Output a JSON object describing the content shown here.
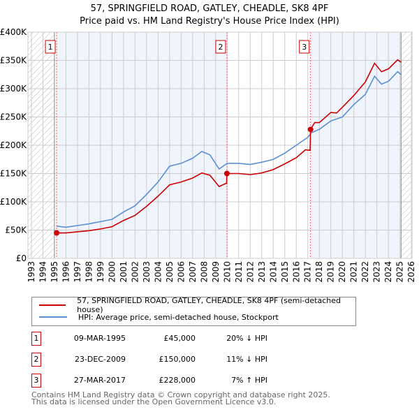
{
  "chart_data": {
    "type": "line",
    "title": "57, SPRINGFIELD ROAD, GATLEY, CHEADLE, SK8 4PF",
    "subtitle": "Price paid vs. HM Land Registry's House Price Index (HPI)",
    "xlim": [
      1993,
      2026
    ],
    "ylim": [
      0,
      400000
    ],
    "x_ticks": [
      "1993",
      "1994",
      "1995",
      "1996",
      "1997",
      "1998",
      "1999",
      "2000",
      "2001",
      "2002",
      "2003",
      "2004",
      "2005",
      "2006",
      "2007",
      "2008",
      "2009",
      "2010",
      "2011",
      "2012",
      "2013",
      "2014",
      "2015",
      "2016",
      "2017",
      "2018",
      "2019",
      "2020",
      "2021",
      "2022",
      "2023",
      "2024",
      "2025",
      "2026"
    ],
    "y_ticks": [
      {
        "v": 0,
        "label": "£0"
      },
      {
        "v": 50000,
        "label": "£50K"
      },
      {
        "v": 100000,
        "label": "£100K"
      },
      {
        "v": 150000,
        "label": "£150K"
      },
      {
        "v": 200000,
        "label": "£200K"
      },
      {
        "v": 250000,
        "label": "£250K"
      },
      {
        "v": 300000,
        "label": "£300K"
      },
      {
        "v": 350000,
        "label": "£350K"
      },
      {
        "v": 400000,
        "label": "£400K"
      }
    ],
    "grid": true,
    "hatched_before": 1995.0,
    "hatched_after": 2025.1,
    "series": [
      {
        "name": "57, SPRINGFIELD ROAD, GATLEY, CHEADLE, SK8 4PF (semi-detached house)",
        "color": "#cc0000",
        "x": [
          1995.19,
          1996,
          1997,
          1998,
          1999,
          2000,
          2001,
          2002,
          2003,
          2004,
          2005,
          2006,
          2007,
          2007.8,
          2008.5,
          2009.3,
          2009.95,
          2009.98,
          2011,
          2012,
          2013,
          2014,
          2015,
          2016,
          2016.8,
          2017.2,
          2017.24,
          2017.6,
          2018,
          2019,
          2019.5,
          2020,
          2021,
          2022,
          2022.8,
          2023.4,
          2024,
          2024.8,
          2025.1
        ],
        "y": [
          45000,
          45000,
          47000,
          49000,
          52000,
          56000,
          67000,
          76000,
          92000,
          110000,
          130000,
          135000,
          142000,
          151000,
          147000,
          127000,
          133000,
          150000,
          150000,
          148000,
          151000,
          157000,
          167000,
          178000,
          192000,
          191000,
          228000,
          240000,
          240000,
          258000,
          257000,
          267000,
          288000,
          312000,
          345000,
          330000,
          335000,
          351000,
          347000
        ]
      },
      {
        "name": "HPI: Average price, semi-detached house, Stockport",
        "color": "#5b8fd4",
        "x": [
          1995.19,
          1996,
          1997,
          1998,
          1999,
          2000,
          2001,
          2002,
          2003,
          2004,
          2005,
          2006,
          2007,
          2007.8,
          2008.5,
          2009.3,
          2010,
          2011,
          2012,
          2013,
          2014,
          2015,
          2016,
          2017,
          2017.3,
          2018,
          2019,
          2020,
          2021,
          2022,
          2022.8,
          2023.4,
          2024,
          2024.8,
          2025.1
        ],
        "y": [
          57000,
          55000,
          58000,
          61000,
          65000,
          69000,
          82000,
          93000,
          113000,
          135000,
          163000,
          168000,
          177000,
          189000,
          183000,
          158000,
          168000,
          168000,
          166000,
          170000,
          175000,
          186000,
          200000,
          214000,
          222000,
          228000,
          243000,
          250000,
          272000,
          290000,
          322000,
          308000,
          313000,
          330000,
          325000
        ]
      }
    ],
    "sales": [
      {
        "label": "1",
        "x": 2009.97,
        "year": 1995.19,
        "price": 45000
      },
      {
        "label": "2",
        "year": 2009.98,
        "price": 150000
      },
      {
        "label": "3",
        "year": 2017.24,
        "price": 228000
      }
    ]
  },
  "legend": {
    "property": "57, SPRINGFIELD ROAD, GATLEY, CHEADLE, SK8 4PF (semi-detached house)",
    "hpi": "HPI: Average price, semi-detached house, Stockport"
  },
  "transactions": [
    {
      "num": "1",
      "date": "09-MAR-1995",
      "price": "£45,000",
      "hpi": "20% ↓ HPI"
    },
    {
      "num": "2",
      "date": "23-DEC-2009",
      "price": "£150,000",
      "hpi": "11% ↓ HPI"
    },
    {
      "num": "3",
      "date": "27-MAR-2017",
      "price": "£228,000",
      "hpi": "7% ↑ HPI"
    }
  ],
  "footer": {
    "line1": "Contains HM Land Registry data © Crown copyright and database right 2025.",
    "line2": "This data is licensed under the Open Government Licence v3.0."
  }
}
